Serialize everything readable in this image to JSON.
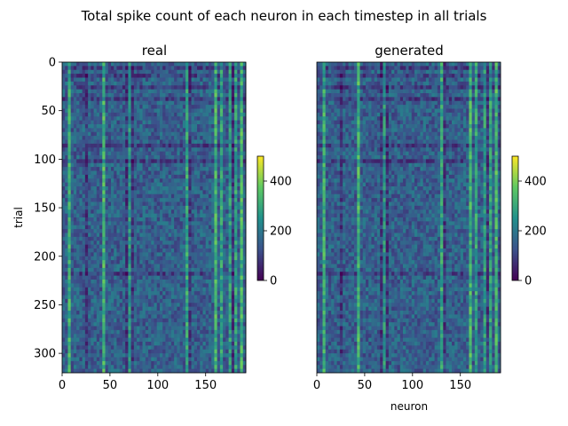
{
  "figure": {
    "suptitle": "Total spike count of each neuron in each timestep in all trials"
  },
  "colormap": {
    "name": "viridis",
    "stops": [
      "#440154",
      "#3b528b",
      "#21918c",
      "#5ec962",
      "#fde725"
    ]
  },
  "chart_data": [
    {
      "type": "heatmap",
      "title": "real",
      "xlabel": "",
      "ylabel": "trial",
      "x_range": [
        0,
        192
      ],
      "y_range": [
        0,
        320
      ],
      "x_ticks": [
        0,
        50,
        100,
        150
      ],
      "y_ticks": [
        0,
        50,
        100,
        150,
        200,
        250,
        300
      ],
      "n_neurons": 192,
      "n_trials": 320,
      "colorbar": {
        "range": [
          0,
          500
        ],
        "ticks": [
          0,
          200,
          400
        ]
      }
    },
    {
      "type": "heatmap",
      "title": "generated",
      "xlabel": "neuron",
      "ylabel": "",
      "x_range": [
        0,
        192
      ],
      "y_range": [
        0,
        320
      ],
      "x_ticks": [
        0,
        50,
        100,
        150
      ],
      "y_ticks": [],
      "n_neurons": 192,
      "n_trials": 320,
      "colorbar": {
        "range": [
          0,
          500
        ],
        "ticks": [
          0,
          200,
          400
        ]
      }
    }
  ]
}
